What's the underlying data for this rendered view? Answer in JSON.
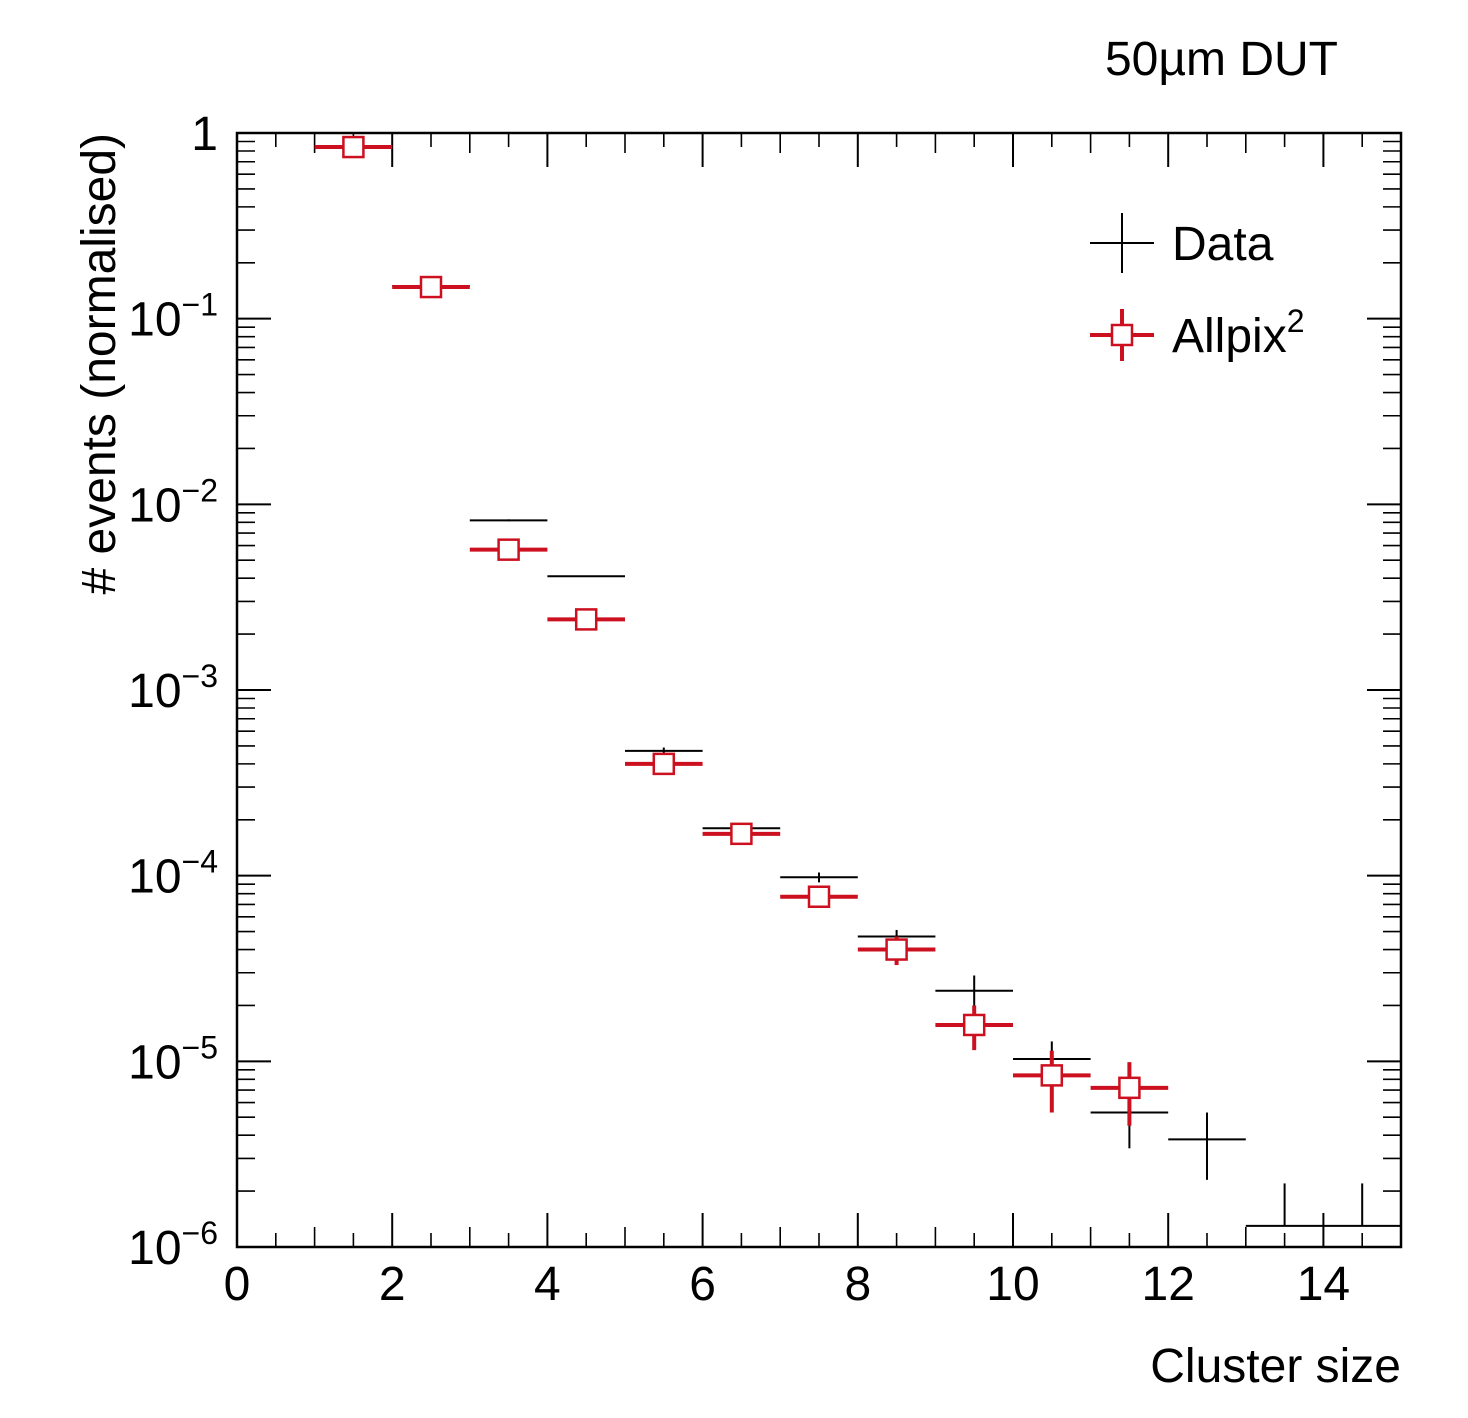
{
  "chart_data": {
    "type": "scatter",
    "title": "50µm DUT",
    "xlabel": "Cluster size",
    "ylabel": "# events (normalised)",
    "xlim": [
      0,
      15
    ],
    "ylim": [
      1e-06,
      1
    ],
    "yscale": "log",
    "x_ticks": [
      "0",
      "2",
      "4",
      "6",
      "8",
      "10",
      "12",
      "14"
    ],
    "y_ticks": [
      {
        "base": "1",
        "exp": ""
      },
      {
        "base": "10",
        "exp": "−1"
      },
      {
        "base": "10",
        "exp": "−2"
      },
      {
        "base": "10",
        "exp": "−3"
      },
      {
        "base": "10",
        "exp": "−4"
      },
      {
        "base": "10",
        "exp": "−5"
      },
      {
        "base": "10",
        "exp": "−6"
      }
    ],
    "legend_position": "top-right",
    "legend": [
      {
        "label": "Data",
        "sup": ""
      },
      {
        "label": "Allpix",
        "sup": "2"
      }
    ],
    "series": [
      {
        "name": "Data",
        "color": "#000000",
        "marker": "cross",
        "bin_width": 1,
        "x": [
          1.5,
          2.5,
          3.5,
          4.5,
          5.5,
          6.5,
          7.5,
          8.5,
          9.5,
          10.5,
          11.5,
          12.5,
          13.5,
          14.5
        ],
        "y": [
          0.83,
          0.15,
          0.0082,
          0.0041,
          0.00047,
          0.00018,
          9.8e-05,
          4.7e-05,
          2.4e-05,
          1.03e-05,
          5.3e-06,
          3.8e-06,
          1.3e-06,
          1.3e-06
        ],
        "ylo": [
          0.8,
          0.145,
          0.0081,
          0.00409,
          0.00045,
          0.000172,
          9.2e-05,
          4.3e-05,
          1.9e-05,
          7.7e-06,
          3.4e-06,
          2.3e-06,
          1.3e-06,
          1.3e-06
        ],
        "yhi": [
          0.86,
          0.155,
          0.0083,
          0.00411,
          0.00049,
          0.000188,
          0.000104,
          5.1e-05,
          2.9e-05,
          1.28e-05,
          7.2e-06,
          5.3e-06,
          2.2e-06,
          2.2e-06
        ]
      },
      {
        "name": "Allpix²",
        "color": "#cc1020",
        "marker": "open-square",
        "bin_width": 1,
        "x": [
          1.5,
          2.5,
          3.5,
          4.5,
          5.5,
          6.5,
          7.5,
          8.5,
          9.5,
          10.5,
          11.5
        ],
        "y": [
          0.84,
          0.148,
          0.0057,
          0.0024,
          0.0004,
          0.000168,
          7.7e-05,
          4e-05,
          1.57e-05,
          8.4e-06,
          7.2e-06
        ],
        "ylo": [
          0.82,
          0.145,
          0.0056,
          0.00237,
          0.00039,
          0.000158,
          7.1e-05,
          3.3e-05,
          1.15e-05,
          5.3e-06,
          4.5e-06
        ],
        "yhi": [
          0.86,
          0.151,
          0.0058,
          0.00243,
          0.00041,
          0.000178,
          8.3e-05,
          4.7e-05,
          2e-05,
          1.14e-05,
          9.9e-06
        ]
      }
    ]
  }
}
